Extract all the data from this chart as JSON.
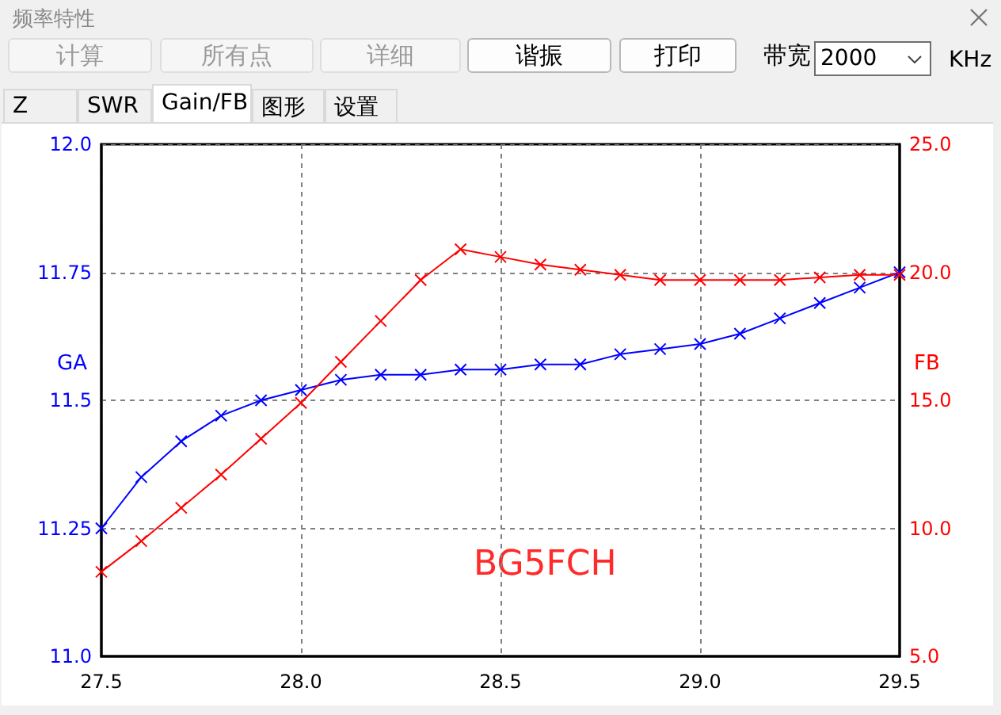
{
  "chart_data": {
    "type": "line",
    "title": "频率特性",
    "ylabel": "GA",
    "y2label": "FB",
    "x": [
      27.5,
      27.6,
      27.7,
      27.8,
      27.9,
      28.0,
      28.1,
      28.2,
      28.3,
      28.4,
      28.5,
      28.6,
      28.7,
      28.8,
      28.9,
      29.0,
      29.1,
      29.2,
      29.3,
      29.4,
      29.5
    ],
    "series": [
      {
        "color": "#0000ff",
        "values": [
          11.25,
          11.35,
          11.42,
          11.47,
          11.5,
          11.52,
          11.54,
          11.55,
          11.55,
          11.56,
          11.56,
          11.57,
          11.57,
          11.59,
          11.6,
          11.61,
          11.63,
          11.66,
          11.69,
          11.72,
          11.75
        ]
      },
      {
        "color": "#ff0000",
        "axis": "y2",
        "values": [
          8.3,
          9.5,
          10.8,
          12.1,
          13.5,
          14.9,
          16.5,
          18.1,
          19.7,
          20.9,
          20.6,
          20.3,
          20.1,
          19.9,
          19.7,
          19.7,
          19.7,
          19.7,
          19.8,
          19.9,
          19.9
        ]
      }
    ],
    "xlim": [
      27.5,
      29.5
    ],
    "xticks": [
      27.5,
      {
        "value": 28,
        "label": "28.0"
      },
      28.5,
      {
        "value": 29,
        "label": "29.0"
      },
      29.5
    ],
    "ylim": [
      11,
      12
    ],
    "yticks": [
      {
        "value": 11,
        "label": "11.0"
      },
      11.25,
      11.5,
      11.75,
      {
        "value": 12,
        "label": "12.0"
      }
    ],
    "y2lim": [
      5,
      25
    ],
    "y2ticks": [
      {
        "value": 5,
        "label": "5.0"
      },
      {
        "value": 10,
        "label": "10.0"
      },
      {
        "value": 15,
        "label": "15.0"
      },
      {
        "value": 20,
        "label": "20.0"
      },
      {
        "value": 25,
        "label": "25.0"
      }
    ],
    "grid": true,
    "marker": "cross",
    "line_style": "solid",
    "annotations": [
      "计算",
      "所有点",
      "详细",
      "谐振",
      "打印",
      "带宽",
      "2000",
      "KHz",
      "Z",
      "SWR",
      "Gain/FB",
      "图形",
      "设置",
      "BG5FCH"
    ]
  }
}
